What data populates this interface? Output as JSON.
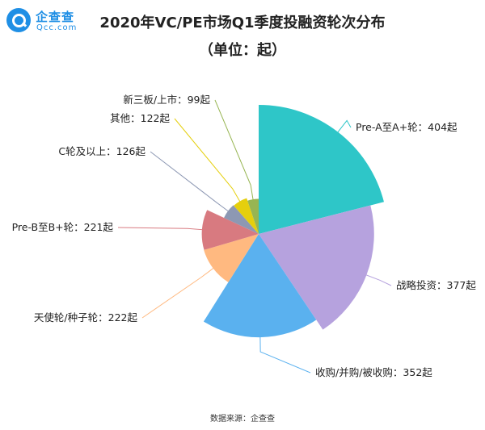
{
  "brand": {
    "logo_text": "企查查",
    "logo_sub": "Qcc.com"
  },
  "title_line1": "2020年VC/PE市场Q1季度投融资轮次分布",
  "title_line2": "（单位：起）",
  "source": "数据来源：企查查",
  "chart_data": {
    "type": "pie",
    "variant": "nightingale-rose",
    "title": "2020年VC/PE市场Q1季度投融资轮次分布",
    "subtitle": "（单位：起）",
    "unit": "起",
    "legend": "none",
    "slices": [
      {
        "name": "Pre-A至A+轮",
        "value": 404,
        "label": "Pre-A至A+轮：404起",
        "color": "#2ec6c8"
      },
      {
        "name": "战略投资",
        "value": 377,
        "label": "战略投资：377起",
        "color": "#b6a2de"
      },
      {
        "name": "收购/并购/被收购",
        "value": 352,
        "label": "收购/并购/被收购：352起",
        "color": "#5ab1ef"
      },
      {
        "name": "天使轮/种子轮",
        "value": 222,
        "label": "天使轮/种子轮：222起",
        "color": "#ffb980"
      },
      {
        "name": "Pre-B至B+轮",
        "value": 221,
        "label": "Pre-B至B+轮：221起",
        "color": "#d87a80"
      },
      {
        "name": "C轮及以上",
        "value": 126,
        "label": "C轮及以上：126起",
        "color": "#8d98b3"
      },
      {
        "name": "其他",
        "value": 122,
        "label": "其他：122起",
        "color": "#e5cf0d"
      },
      {
        "name": "新三板/上市",
        "value": 99,
        "label": "新三板/上市：99起",
        "color": "#97b552"
      }
    ]
  }
}
